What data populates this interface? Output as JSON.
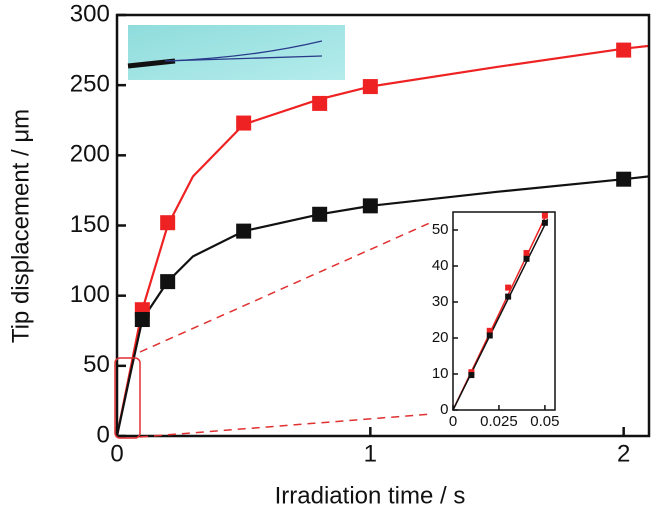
{
  "chart_data": [
    {
      "type": "line",
      "xlabel": "Irradiation time / s",
      "ylabel": "Tip displacement / μm",
      "xlim": [
        0,
        2.1
      ],
      "ylim": [
        0,
        300
      ],
      "xticks": [
        0,
        1,
        2
      ],
      "yticks": [
        0,
        50,
        100,
        150,
        200,
        250,
        300
      ],
      "series": [
        {
          "color": "#ee2222",
          "marker": "square",
          "x": [
            0.1,
            0.2,
            0.5,
            0.8,
            1,
            2
          ],
          "values": [
            90,
            152,
            223,
            237,
            249,
            275
          ]
        },
        {
          "color": "#111111",
          "marker": "square",
          "x": [
            0.1,
            0.2,
            0.5,
            0.8,
            1,
            2
          ],
          "values": [
            83,
            110,
            146,
            158,
            164,
            183
          ]
        },
        {
          "color": "#ee2222",
          "x": [
            0,
            0.05,
            0.1,
            0.2,
            0.3,
            0.5,
            0.8,
            1,
            1.5,
            2,
            2.1
          ],
          "values": [
            0,
            45,
            90,
            150,
            185,
            222,
            240,
            249,
            263,
            276,
            278
          ]
        },
        {
          "color": "#111111",
          "x": [
            0,
            0.05,
            0.1,
            0.2,
            0.3,
            0.5,
            0.8,
            1,
            1.5,
            2,
            2.1
          ],
          "values": [
            0,
            42,
            83,
            110,
            128,
            146,
            158,
            164,
            174,
            183,
            185
          ]
        }
      ]
    },
    {
      "type": "line",
      "xlim": [
        0,
        0.0555
      ],
      "ylim": [
        0,
        55
      ],
      "xticks": [
        0,
        0.025,
        0.05
      ],
      "yticks": [
        0,
        10,
        20,
        30,
        40,
        50
      ],
      "series": [
        {
          "color": "#ee2222",
          "marker": "square",
          "x": [
            0.01,
            0.02,
            0.03,
            0.04,
            0.05
          ],
          "values": [
            10.5,
            22,
            34,
            43.6,
            54
          ]
        },
        {
          "color": "#111111",
          "marker": "square",
          "x": [
            0.01,
            0.02,
            0.03,
            0.04,
            0.05
          ],
          "values": [
            9.7,
            20.7,
            31.5,
            42,
            52
          ]
        },
        {
          "color": "#ee2222",
          "x": [
            0,
            0.0515
          ],
          "values": [
            0,
            55
          ]
        },
        {
          "color": "#111111",
          "x": [
            0,
            0.0515
          ],
          "values": [
            0,
            53
          ]
        }
      ]
    }
  ]
}
